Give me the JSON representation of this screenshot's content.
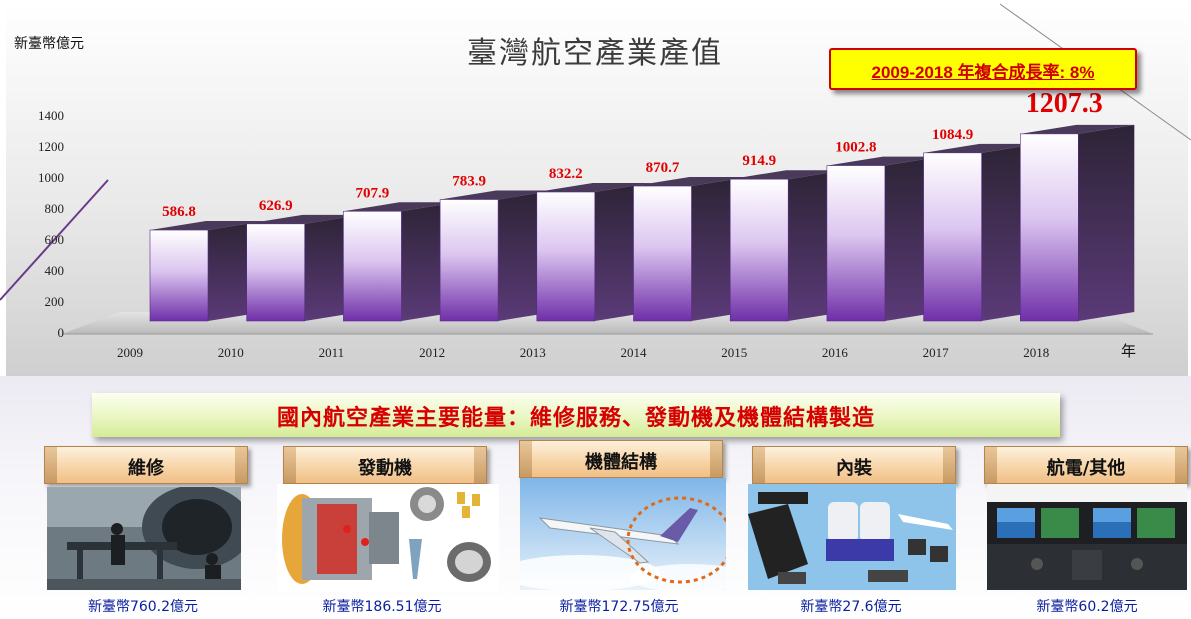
{
  "chart_data": {
    "type": "bar",
    "title": "臺灣航空產業產值",
    "ylabel": "新臺幣億元",
    "xlabel": "年",
    "categories": [
      "2009",
      "2010",
      "2011",
      "2012",
      "2013",
      "2014",
      "2015",
      "2016",
      "2017",
      "2018"
    ],
    "values": [
      586.8,
      626.9,
      707.9,
      783.9,
      832.2,
      870.7,
      914.9,
      1002.8,
      1084.9,
      1207.3
    ],
    "data_labels": [
      "586.8",
      "626.9",
      "707.9",
      "783.9",
      "832.2",
      "870.7",
      "914.9",
      "1002.8",
      "1084.9",
      "1207.3"
    ],
    "ylim": [
      0,
      1400
    ],
    "yticks": [
      0,
      200,
      400,
      600,
      800,
      1000,
      1200,
      1400
    ],
    "grid": false,
    "annotation": "2009-2018 年複合成長率: 8%",
    "colors": {
      "bar_top": "#ffffff",
      "bar_bottom": "#7a3cb0",
      "side": "#3a2a48",
      "label": "#e00000"
    }
  },
  "banner": {
    "text": "國內航空產業主要能量：維修服務、發動機及機體結構製造"
  },
  "categories": [
    {
      "label": "維修",
      "value": "新臺幣760.2億元",
      "icon": "aircraft-maintenance-photo"
    },
    {
      "label": "發動機",
      "value": "新臺幣186.51億元",
      "icon": "jet-engine-parts-photo"
    },
    {
      "label": "機體結構",
      "value": "新臺幣172.75億元",
      "icon": "business-jet-photo"
    },
    {
      "label": "內裝",
      "value": "新臺幣27.6億元",
      "icon": "cabin-interior-photo"
    },
    {
      "label": "航電/其他",
      "value": "新臺幣60.2億元",
      "icon": "cockpit-avionics-photo"
    }
  ],
  "colors": {
    "title": "#3b3b3b",
    "accent_red": "#d00000",
    "value_blue": "#0b1e9e"
  }
}
